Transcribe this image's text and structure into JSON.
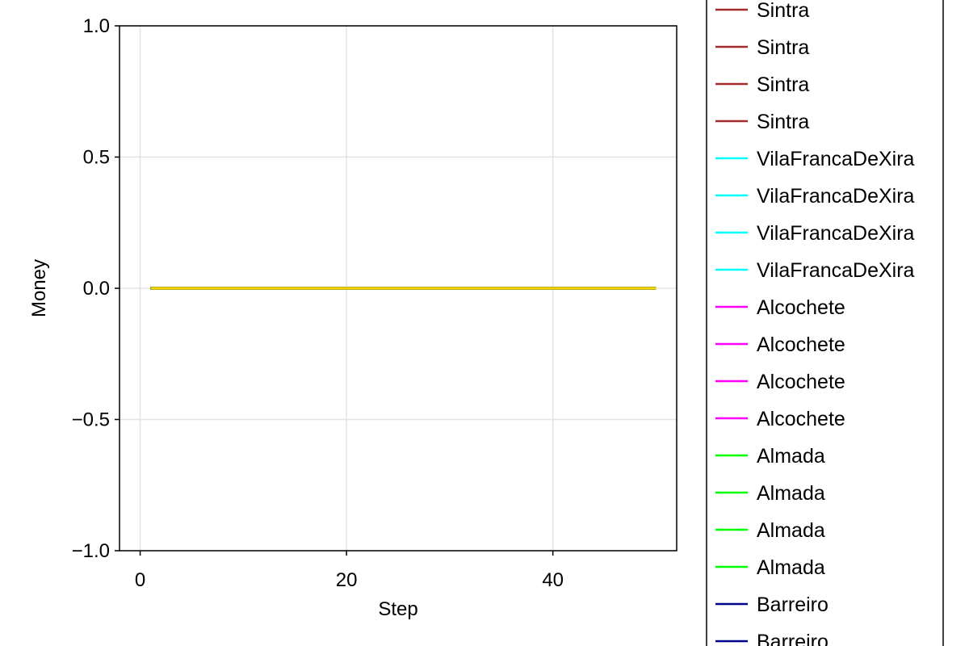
{
  "chart_data": {
    "type": "line",
    "title": "",
    "xlabel": "Step",
    "ylabel": "Money",
    "xlim": [
      -2,
      52
    ],
    "ylim": [
      -1.0,
      1.0
    ],
    "xticks": [
      0,
      20,
      40
    ],
    "xtick_labels": [
      "0",
      "20",
      "40"
    ],
    "yticks": [
      -1.0,
      -0.5,
      0.0,
      0.5,
      1.0
    ],
    "ytick_labels": [
      "−1.0",
      "−0.5",
      "0.0",
      "0.5",
      "1.0"
    ],
    "grid": true,
    "legend_position": "right",
    "x": [
      1,
      50
    ],
    "series": [
      {
        "name": "Sintra",
        "color": "#a52a2a",
        "values": [
          0,
          0
        ]
      },
      {
        "name": "Sintra",
        "color": "#a52a2a",
        "values": [
          0,
          0
        ]
      },
      {
        "name": "Sintra",
        "color": "#a52a2a",
        "values": [
          0,
          0
        ]
      },
      {
        "name": "Sintra",
        "color": "#a52a2a",
        "values": [
          0,
          0
        ]
      },
      {
        "name": "VilaFrancaDeXira",
        "color": "#00ffff",
        "values": [
          0,
          0
        ]
      },
      {
        "name": "VilaFrancaDeXira",
        "color": "#00ffff",
        "values": [
          0,
          0
        ]
      },
      {
        "name": "VilaFrancaDeXira",
        "color": "#00ffff",
        "values": [
          0,
          0
        ]
      },
      {
        "name": "VilaFrancaDeXira",
        "color": "#00ffff",
        "values": [
          0,
          0
        ]
      },
      {
        "name": "Alcochete",
        "color": "#ff00ff",
        "values": [
          0,
          0
        ]
      },
      {
        "name": "Alcochete",
        "color": "#ff00ff",
        "values": [
          0,
          0
        ]
      },
      {
        "name": "Alcochete",
        "color": "#ff00ff",
        "values": [
          0,
          0
        ]
      },
      {
        "name": "Alcochete",
        "color": "#ff00ff",
        "values": [
          0,
          0
        ]
      },
      {
        "name": "Almada",
        "color": "#00ff00",
        "values": [
          0,
          0
        ]
      },
      {
        "name": "Almada",
        "color": "#00ff00",
        "values": [
          0,
          0
        ]
      },
      {
        "name": "Almada",
        "color": "#00ff00",
        "values": [
          0,
          0
        ]
      },
      {
        "name": "Almada",
        "color": "#00ff00",
        "values": [
          0,
          0
        ]
      },
      {
        "name": "Barreiro",
        "color": "#00008b",
        "values": [
          0,
          0
        ]
      },
      {
        "name": "Barreiro",
        "color": "#00008b",
        "values": [
          0,
          0
        ]
      },
      {
        "color": "#f5d400",
        "values": [
          0,
          0
        ]
      }
    ]
  }
}
